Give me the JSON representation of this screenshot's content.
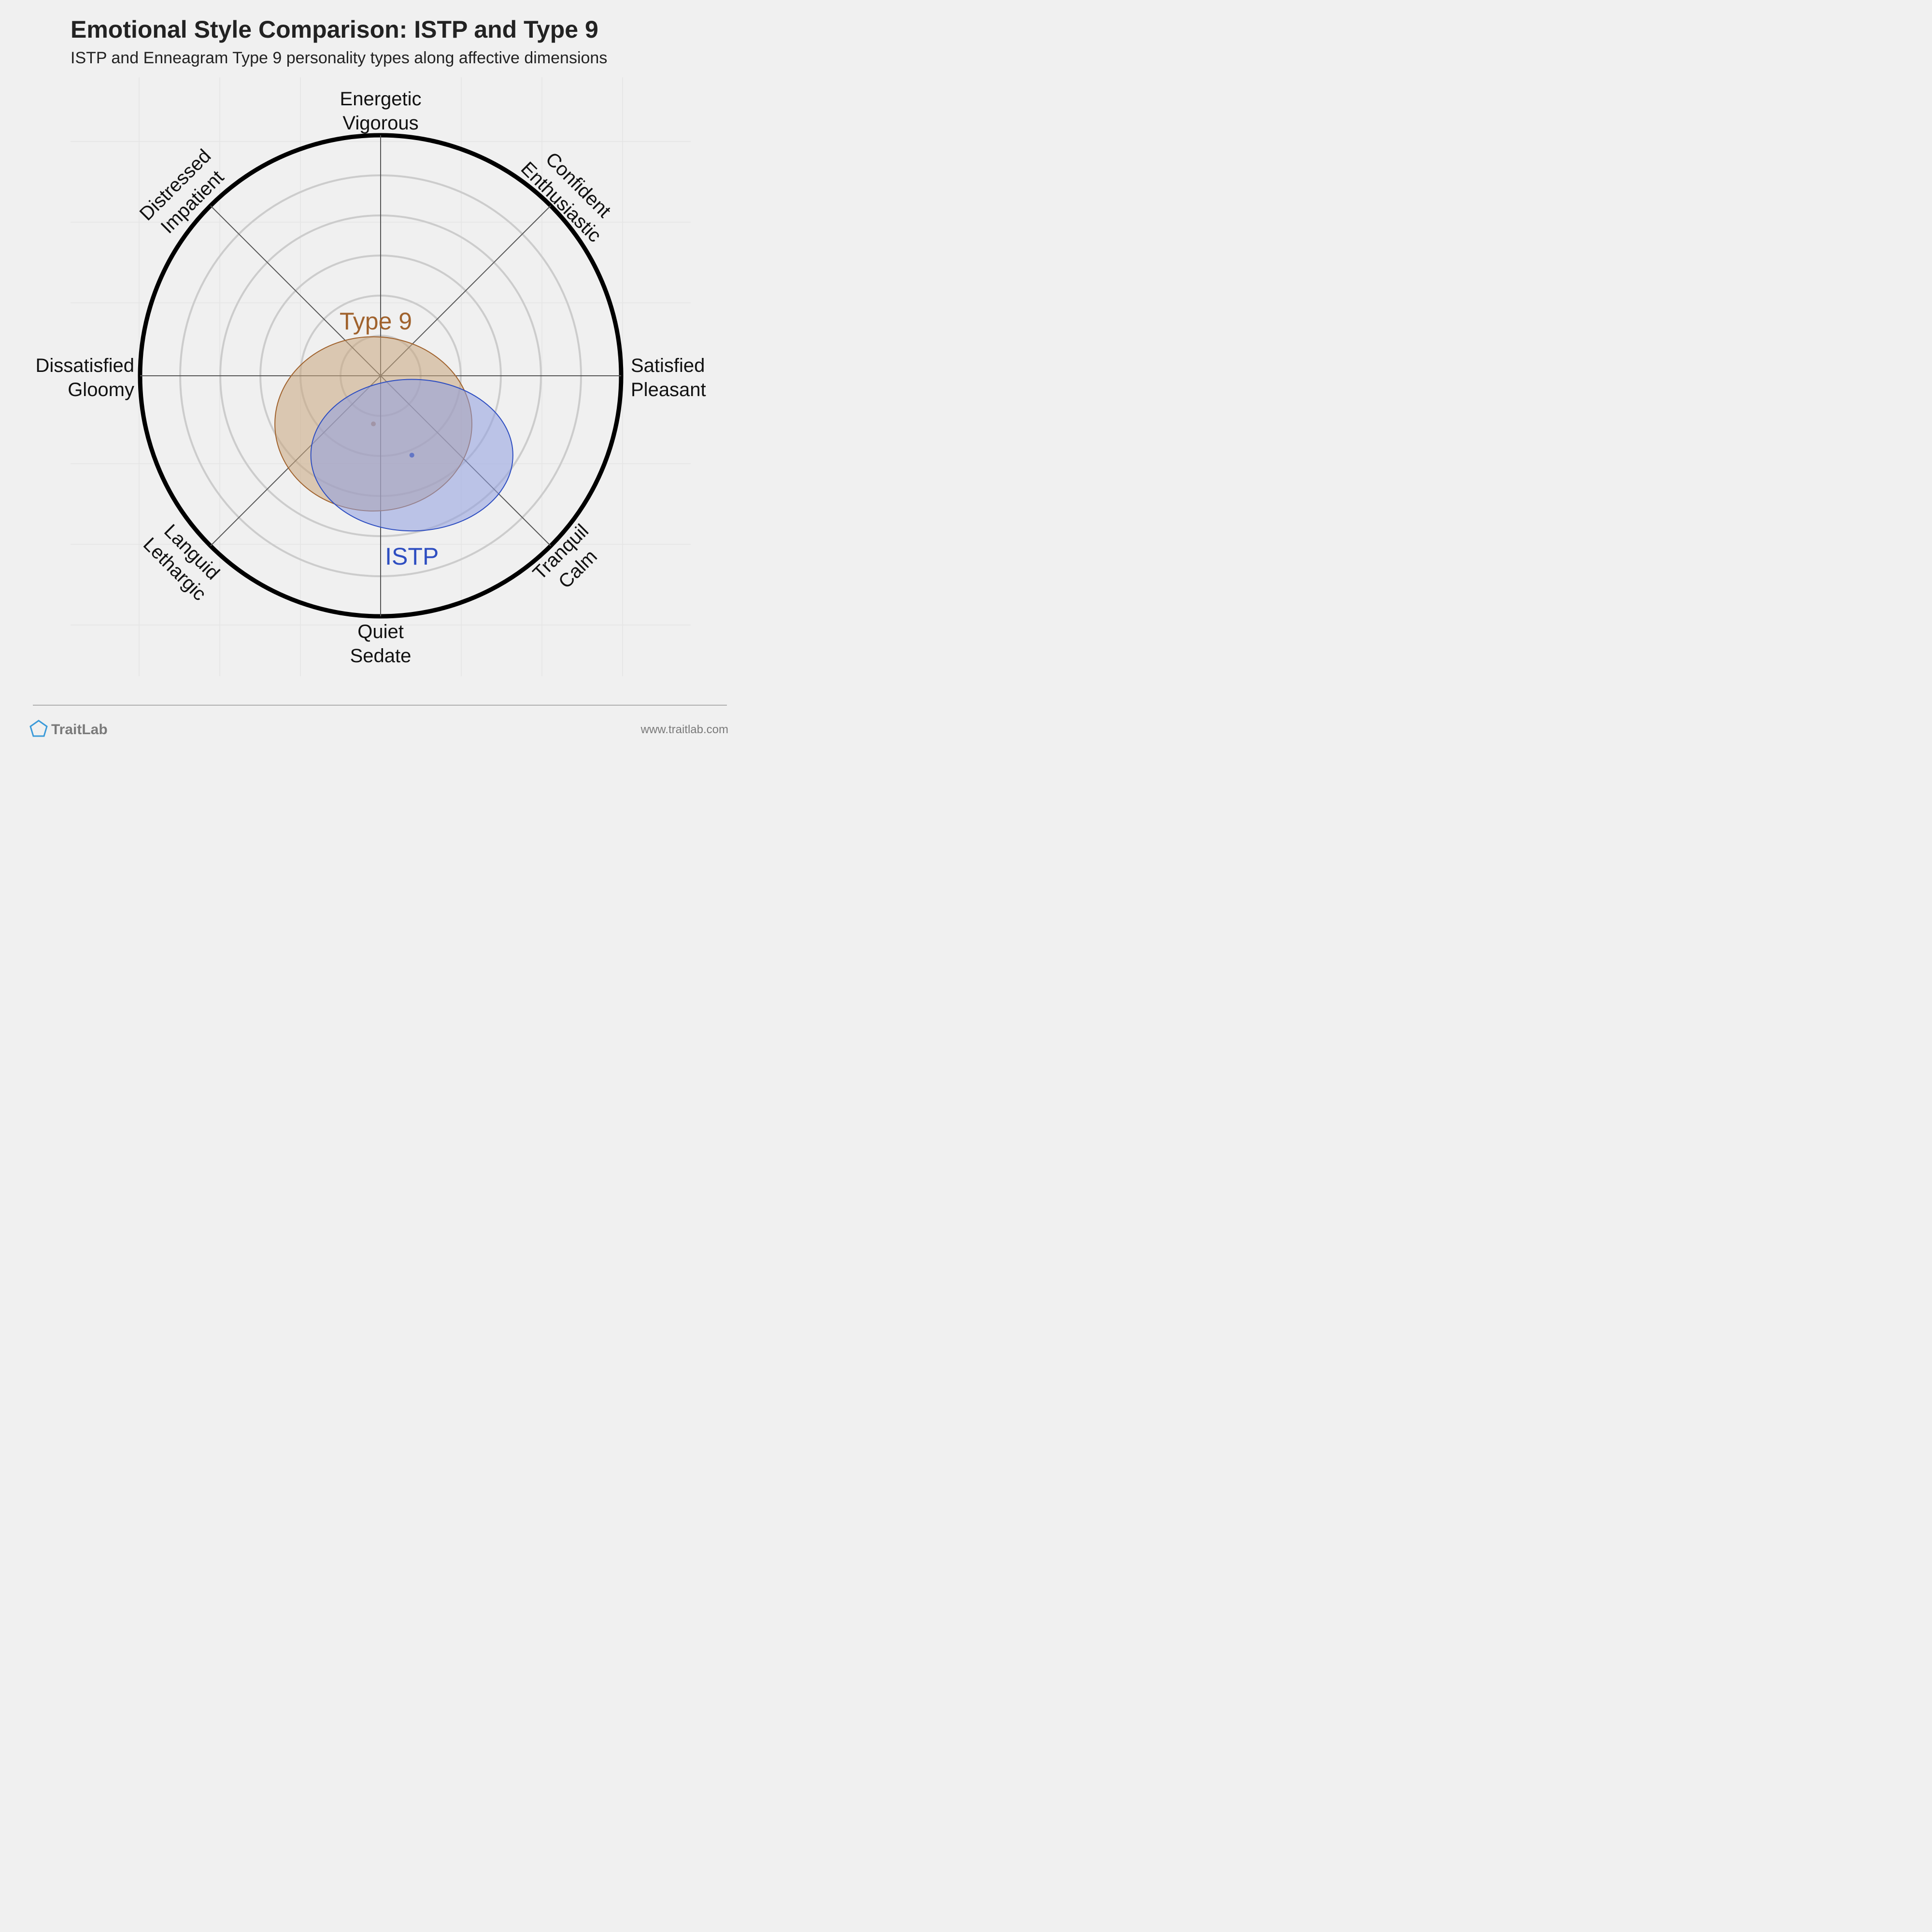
{
  "chart_data": {
    "type": "scatter",
    "title": "Emotional Style Comparison: ISTP and Type 9",
    "subtitle": "ISTP and Enneagram Type 9 personality types along affective dimensions",
    "axes": [
      {
        "id": "energetic",
        "lines": [
          "Energetic",
          "Vigorous"
        ]
      },
      {
        "id": "confident",
        "lines": [
          "Confident",
          "Enthusiastic"
        ]
      },
      {
        "id": "satisfied",
        "lines": [
          "Satisfied",
          "Pleasant"
        ]
      },
      {
        "id": "tranquil",
        "lines": [
          "Tranquil",
          "Calm"
        ]
      },
      {
        "id": "quiet",
        "lines": [
          "Quiet",
          "Sedate"
        ]
      },
      {
        "id": "languid",
        "lines": [
          "Languid",
          "Lethargic"
        ]
      },
      {
        "id": "dissatisfied",
        "lines": [
          "Dissatisfied",
          "Gloomy"
        ]
      },
      {
        "id": "distressed",
        "lines": [
          "Distressed",
          "Impatient"
        ]
      }
    ],
    "x_range": [
      -1,
      1
    ],
    "y_range": [
      -1,
      1
    ],
    "rings": 6,
    "series": [
      {
        "name": "Type 9",
        "center": [
          -0.03,
          -0.2
        ],
        "spread": [
          0.78,
          0.69
        ],
        "color": "#a0622d",
        "fill": "#c8a67e"
      },
      {
        "name": "ISTP",
        "center": [
          0.13,
          -0.33
        ],
        "spread": [
          0.8,
          0.6
        ],
        "color": "#2e4ec1",
        "fill": "#8f9ee0"
      }
    ],
    "grid": true
  },
  "footer": {
    "brand": "TraitLab",
    "url": "www.traitlab.com"
  },
  "colors": {
    "background": "#f0f0f0",
    "outer_ring": "#000000",
    "inner_ring": "#cccccc",
    "axis_line": "#555555",
    "brand_icon": "#3a9ad9"
  }
}
